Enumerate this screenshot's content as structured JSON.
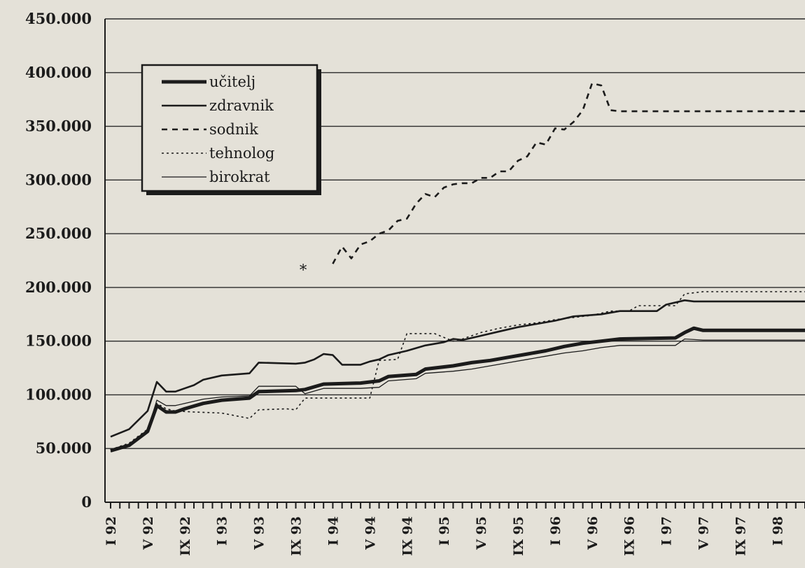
{
  "chart_data": {
    "type": "line",
    "ylim": [
      0,
      450000
    ],
    "y_ticks": [
      {
        "value": 0,
        "label": "0"
      },
      {
        "value": 50000,
        "label": "50.000"
      },
      {
        "value": 100000,
        "label": "100.000"
      },
      {
        "value": 150000,
        "label": "150.000"
      },
      {
        "value": 200000,
        "label": "200.000"
      },
      {
        "value": 250000,
        "label": "250.000"
      },
      {
        "value": 300000,
        "label": "300.000"
      },
      {
        "value": 350000,
        "label": "350.000"
      },
      {
        "value": 400000,
        "label": "400.000"
      },
      {
        "value": 450000,
        "label": "450.000"
      }
    ],
    "x_labels": [
      "I 92",
      "V 92",
      "IX 92",
      "I 93",
      "V 93",
      "IX 93",
      "I 94",
      "V 94",
      "IX 94",
      "I 95",
      "V 95",
      "IX 95",
      "I 96",
      "V 96",
      "IX 96",
      "I 97",
      "V 97",
      "IX 97",
      "I 98"
    ],
    "x_range": [
      0,
      75
    ],
    "grid": true,
    "legend_position": "top-left",
    "series": [
      {
        "name": "učitelj",
        "style": "thick-solid",
        "color": "#1b1b1b",
        "points": [
          [
            0,
            48000
          ],
          [
            2,
            53000
          ],
          [
            4,
            66000
          ],
          [
            5,
            90000
          ],
          [
            6,
            84000
          ],
          [
            7,
            84000
          ],
          [
            8,
            87000
          ],
          [
            10,
            92000
          ],
          [
            12,
            95000
          ],
          [
            15,
            97000
          ],
          [
            16,
            103000
          ],
          [
            20,
            104000
          ],
          [
            21,
            105000
          ],
          [
            23,
            110000
          ],
          [
            27,
            111000
          ],
          [
            29,
            113000
          ],
          [
            30,
            117000
          ],
          [
            33,
            119000
          ],
          [
            34,
            124000
          ],
          [
            37,
            127000
          ],
          [
            39,
            130000
          ],
          [
            41,
            132000
          ],
          [
            43,
            135000
          ],
          [
            45,
            138000
          ],
          [
            47,
            141000
          ],
          [
            49,
            145000
          ],
          [
            51,
            148000
          ],
          [
            53,
            150000
          ],
          [
            55,
            152000
          ],
          [
            61,
            153000
          ],
          [
            62,
            158000
          ],
          [
            63,
            162000
          ],
          [
            64,
            160000
          ],
          [
            75,
            160000
          ]
        ]
      },
      {
        "name": "zdravnik",
        "style": "solid",
        "color": "#1b1b1b",
        "points": [
          [
            0,
            61000
          ],
          [
            2,
            68000
          ],
          [
            4,
            85000
          ],
          [
            5,
            112000
          ],
          [
            6,
            103000
          ],
          [
            7,
            103000
          ],
          [
            8,
            106000
          ],
          [
            9,
            109000
          ],
          [
            10,
            114000
          ],
          [
            12,
            118000
          ],
          [
            15,
            120000
          ],
          [
            16,
            130000
          ],
          [
            20,
            129000
          ],
          [
            21,
            130000
          ],
          [
            22,
            133000
          ],
          [
            23,
            138000
          ],
          [
            24,
            137000
          ],
          [
            25,
            128000
          ],
          [
            27,
            128000
          ],
          [
            28,
            131000
          ],
          [
            29,
            133000
          ],
          [
            30,
            137000
          ],
          [
            32,
            141000
          ],
          [
            34,
            146000
          ],
          [
            36,
            149000
          ],
          [
            37,
            152000
          ],
          [
            38,
            151000
          ],
          [
            40,
            155000
          ],
          [
            42,
            159000
          ],
          [
            44,
            163000
          ],
          [
            46,
            166000
          ],
          [
            48,
            169000
          ],
          [
            50,
            173000
          ],
          [
            53,
            175000
          ],
          [
            55,
            178000
          ],
          [
            59,
            178000
          ],
          [
            60,
            184000
          ],
          [
            62,
            188000
          ],
          [
            63,
            187000
          ],
          [
            75,
            187000
          ]
        ]
      },
      {
        "name": "sodnik",
        "style": "dashed",
        "color": "#1b1b1b",
        "points": [
          [
            24,
            222000
          ],
          [
            25,
            238000
          ],
          [
            26,
            227000
          ],
          [
            27,
            240000
          ],
          [
            28,
            243000
          ],
          [
            29,
            250000
          ],
          [
            30,
            253000
          ],
          [
            31,
            262000
          ],
          [
            32,
            264000
          ],
          [
            33,
            278000
          ],
          [
            34,
            287000
          ],
          [
            35,
            284000
          ],
          [
            36,
            293000
          ],
          [
            37,
            296000
          ],
          [
            38,
            297000
          ],
          [
            39,
            297000
          ],
          [
            40,
            302000
          ],
          [
            41,
            302000
          ],
          [
            42,
            308000
          ],
          [
            43,
            308000
          ],
          [
            44,
            318000
          ],
          [
            45,
            322000
          ],
          [
            46,
            335000
          ],
          [
            47,
            333000
          ],
          [
            48,
            348000
          ],
          [
            49,
            347000
          ],
          [
            50,
            354000
          ],
          [
            51,
            365000
          ],
          [
            52,
            390000
          ],
          [
            53,
            388000
          ],
          [
            54,
            365000
          ],
          [
            55,
            364000
          ],
          [
            75,
            364000
          ]
        ],
        "annotation": "*"
      },
      {
        "name": "tehnolog",
        "style": "dotted",
        "color": "#1b1b1b",
        "points": [
          [
            0,
            49000
          ],
          [
            2,
            55000
          ],
          [
            4,
            68000
          ],
          [
            5,
            92000
          ],
          [
            6,
            87000
          ],
          [
            7,
            85000
          ],
          [
            9,
            84000
          ],
          [
            12,
            83000
          ],
          [
            15,
            78000
          ],
          [
            16,
            86000
          ],
          [
            19,
            87000
          ],
          [
            20,
            86000
          ],
          [
            21,
            97000
          ],
          [
            28,
            97000
          ],
          [
            29,
            132000
          ],
          [
            31,
            133000
          ],
          [
            32,
            157000
          ],
          [
            35,
            157000
          ],
          [
            37,
            150000
          ],
          [
            38,
            152000
          ],
          [
            40,
            158000
          ],
          [
            42,
            162000
          ],
          [
            44,
            165000
          ],
          [
            46,
            167000
          ],
          [
            48,
            170000
          ],
          [
            50,
            172000
          ],
          [
            52,
            174000
          ],
          [
            54,
            178000
          ],
          [
            56,
            178000
          ],
          [
            57,
            183000
          ],
          [
            61,
            183000
          ],
          [
            62,
            194000
          ],
          [
            64,
            196000
          ],
          [
            75,
            196000
          ]
        ]
      },
      {
        "name": "birokrat",
        "style": "thin-solid",
        "color": "#1b1b1b",
        "points": [
          [
            0,
            47000
          ],
          [
            2,
            53000
          ],
          [
            4,
            67000
          ],
          [
            5,
            95000
          ],
          [
            6,
            90000
          ],
          [
            7,
            90000
          ],
          [
            8,
            92000
          ],
          [
            10,
            96000
          ],
          [
            12,
            98000
          ],
          [
            15,
            99000
          ],
          [
            16,
            108000
          ],
          [
            20,
            108000
          ],
          [
            21,
            101000
          ],
          [
            23,
            106000
          ],
          [
            27,
            106000
          ],
          [
            29,
            107000
          ],
          [
            30,
            113000
          ],
          [
            33,
            115000
          ],
          [
            34,
            120000
          ],
          [
            37,
            122000
          ],
          [
            39,
            124000
          ],
          [
            41,
            127000
          ],
          [
            43,
            130000
          ],
          [
            45,
            133000
          ],
          [
            47,
            136000
          ],
          [
            49,
            139000
          ],
          [
            51,
            141000
          ],
          [
            53,
            144000
          ],
          [
            55,
            146000
          ],
          [
            61,
            146000
          ],
          [
            62,
            152000
          ],
          [
            64,
            151000
          ],
          [
            75,
            151000
          ]
        ]
      }
    ]
  }
}
